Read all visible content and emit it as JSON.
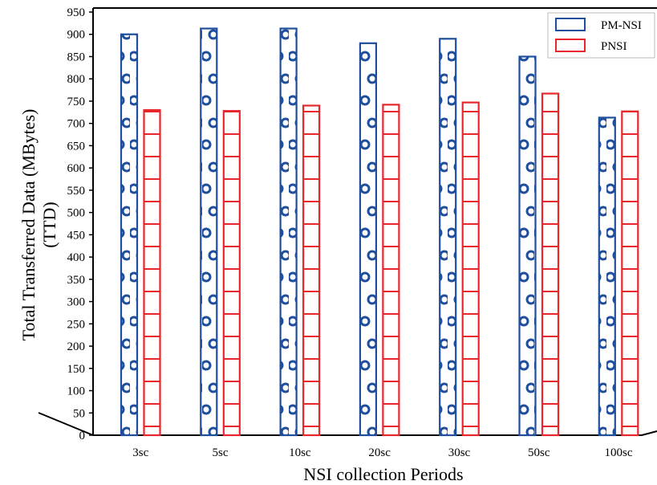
{
  "chart_data": {
    "type": "bar",
    "categories": [
      "3sc",
      "5sc",
      "10sc",
      "20sc",
      "30sc",
      "50sc",
      "100sc"
    ],
    "series": [
      {
        "name": "PM-NSI",
        "values": [
          900,
          913,
          913,
          880,
          890,
          850,
          713
        ]
      },
      {
        "name": "PNSI",
        "values": [
          730,
          728,
          740,
          742,
          747,
          767,
          727
        ]
      }
    ],
    "xlabel": "NSI collection Periods",
    "ylabel_lines": [
      "Total Transferred Data (MBytes)",
      "(TTD)"
    ],
    "ylim": [
      0,
      950
    ],
    "yticks": [
      0,
      50,
      100,
      150,
      200,
      250,
      300,
      350,
      400,
      450,
      500,
      550,
      600,
      650,
      700,
      750,
      800,
      850,
      900,
      950
    ],
    "grid": false,
    "legend_position": "top-right",
    "colors": {
      "PM-NSI": "#1f4e9c",
      "PNSI": "#e8262b"
    },
    "patterns": {
      "PM-NSI": "circles",
      "PNSI": "horizontal-lines"
    }
  }
}
